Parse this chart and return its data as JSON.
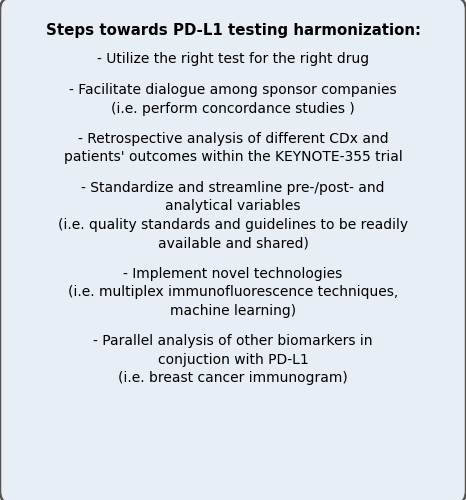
{
  "title": "Steps towards PD-L1 testing harmonization:",
  "background_color": "#e8eef5",
  "box_bg_color": "#e8eef5",
  "border_color": "#555555",
  "text_color": "#000000",
  "title_fontsize": 10.8,
  "body_fontsize": 10.0,
  "fig_bg_color": "#ffffff",
  "items": [
    {
      "lines": [
        "- Utilize the right test for the right drug"
      ]
    },
    {
      "lines": [
        "- Facilitate dialogue among sponsor companies",
        "(i.e. perform concordance studies )"
      ]
    },
    {
      "lines": [
        "- Retrospective analysis of different CDx and",
        "patients' outcomes within the KEYNOTE-355 trial"
      ]
    },
    {
      "lines": [
        "- Standardize and streamline pre-/post- and",
        "analytical variables",
        "(i.e. quality standards and guidelines to be readily",
        "available and shared)"
      ]
    },
    {
      "lines": [
        "- Implement novel technologies",
        "(i.e. multiplex immunofluorescence techniques,",
        "machine learning)"
      ]
    },
    {
      "lines": [
        "- Parallel analysis of other biomarkers in",
        "conjuction with PD-L1",
        "(i.e. breast cancer immunogram)"
      ]
    }
  ]
}
